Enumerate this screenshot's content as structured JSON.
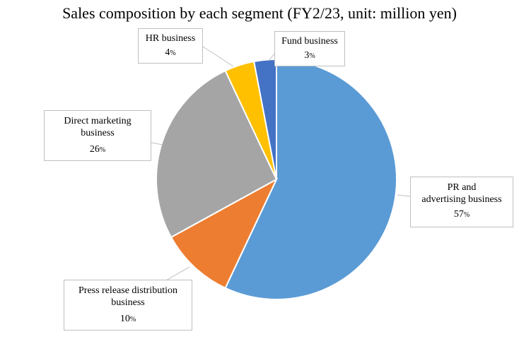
{
  "chart_data": {
    "type": "pie",
    "title": "Sales composition by each segment (FY2/23, unit: million yen)",
    "slices": [
      {
        "label": "PR and advertising business",
        "value": 57,
        "color": "#5b9bd5"
      },
      {
        "label": "Press release distribution business",
        "value": 10,
        "color": "#ed7d31"
      },
      {
        "label": "Direct marketing business",
        "value": 26,
        "color": "#a5a5a5"
      },
      {
        "label": "HR business",
        "value": 4,
        "color": "#ffc000"
      },
      {
        "label": "Fund business",
        "value": 3,
        "color": "#4472c4"
      }
    ],
    "labels": {
      "pr": {
        "name_l1": "PR and",
        "name_l2": "advertising business",
        "pct": "57",
        "unit": "%"
      },
      "press": {
        "name_l1": "Press release distribution",
        "name_l2": "business",
        "pct": "10",
        "unit": "%"
      },
      "direct": {
        "name_l1": "Direct marketing",
        "name_l2": "business",
        "pct": "26",
        "unit": "%"
      },
      "hr": {
        "name_l1": "HR business",
        "pct": "4",
        "unit": "%"
      },
      "fund": {
        "name_l1": "Fund business",
        "pct": "3",
        "unit": "%"
      }
    }
  }
}
